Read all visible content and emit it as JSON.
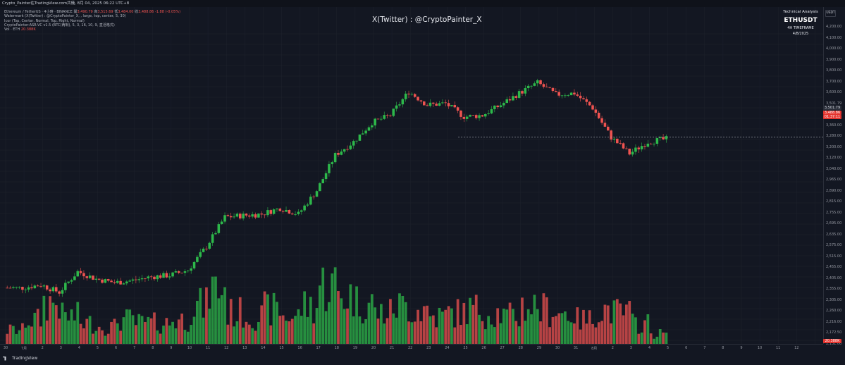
{
  "header": {
    "snapshot_title": "Crypto_Painter在TradingView.com共儀, 8月 04, 2025 06:22 UTC+8"
  },
  "legend": {
    "symbol_line": {
      "label": "Ethereum / TetherUS · 4小時 · BINANCE",
      "o_label": "開",
      "o": "3,490.79",
      "h_label": "高",
      "h": "3,515.69",
      "l_label": "低",
      "l": "3,484.00",
      "c_label": "收",
      "c": "3,488.86",
      "chg": "-1.88 (-0.05%)"
    },
    "watermark_line": "Watermark (X(Twitter) : @CryptoPainter_X, , large, top, center, 5, 30)",
    "settings_line": "Icor (Top, Center, Normal, Top, Right, Normal)",
    "indicator_line": "CryptoPainter-ASR-VC v1.5 (BTC(两制), 5, 3, 16, 10, 9, 直活格式)",
    "vol_line": {
      "label": "Vol · ETH",
      "value": "20.388K"
    }
  },
  "watermark": "X(Twitter) : @CryptoPainter_X",
  "info_box": {
    "heading": "Technical Analysis",
    "symbol": "ETHUSDT",
    "timeframe": "4H TIMEFRAME",
    "date": "4/8/2025"
  },
  "price_axis": {
    "currency_badge": "USDT",
    "ticks": [
      "4,200.00",
      "4,100.00",
      "4,000.00",
      "3,900.00",
      "3,800.00",
      "3,700.00",
      "3,600.00",
      "3,501.79",
      "3,440.00",
      "3,360.00",
      "3,280.00",
      "3,200.00",
      "3,120.00",
      "3,040.00",
      "2,965.00",
      "2,890.00",
      "2,815.00",
      "2,755.00",
      "2,695.00",
      "2,635.00",
      "2,575.00",
      "2,515.00",
      "2,455.00",
      "2,405.00",
      "2,355.00",
      "2,305.00",
      "2,260.00",
      "2,216.00",
      "2,172.50",
      "2,131.00"
    ],
    "badges": {
      "high_badge": "3,501.79",
      "last_price": "3,488.86",
      "countdown": "01:37:11",
      "volume": "20.388K"
    }
  },
  "time_axis": {
    "labels": [
      "30",
      "7月",
      "2",
      "3",
      "4",
      "5",
      "6",
      "7",
      "8",
      "9",
      "10",
      "11",
      "12",
      "13",
      "14",
      "15",
      "16",
      "17",
      "18",
      "19",
      "20",
      "21",
      "22",
      "23",
      "24",
      "25",
      "26",
      "27",
      "28",
      "29",
      "30",
      "31",
      "8月",
      "2",
      "3",
      "4",
      "5",
      "6",
      "7",
      "8",
      "9",
      "10",
      "11",
      "12"
    ]
  },
  "footer": {
    "logo_text": "TradingView"
  },
  "colors": {
    "up": "#26a69a",
    "up_candle": "#2db84a",
    "down": "#ef5350",
    "background": "#131722",
    "grid": "#1e222d",
    "last_price_badge": "#e5352f"
  },
  "chart_data": {
    "type": "candlestick",
    "timeframe": "4H",
    "symbol": "ETHUSDT",
    "x_start": "2025-06-30",
    "ylim": [
      2100,
      4250
    ],
    "reference_line": 3501.79,
    "close_path": [
      {
        "day": "30",
        "close": 2480
      },
      {
        "day": "7月",
        "close": 2500
      },
      {
        "day": "2",
        "close": 2450
      },
      {
        "day": "3",
        "close": 2590
      },
      {
        "day": "4",
        "close": 2540
      },
      {
        "day": "5",
        "close": 2515
      },
      {
        "day": "6",
        "close": 2530
      },
      {
        "day": "7",
        "close": 2555
      },
      {
        "day": "8",
        "close": 2565
      },
      {
        "day": "9",
        "close": 2600
      },
      {
        "day": "10",
        "close": 2760
      },
      {
        "day": "11",
        "close": 2960
      },
      {
        "day": "12",
        "close": 2970
      },
      {
        "day": "13",
        "close": 2980
      },
      {
        "day": "14",
        "close": 3020
      },
      {
        "day": "15",
        "close": 2980
      },
      {
        "day": "16",
        "close": 3140
      },
      {
        "day": "17",
        "close": 3380
      },
      {
        "day": "18",
        "close": 3470
      },
      {
        "day": "19",
        "close": 3600
      },
      {
        "day": "20",
        "close": 3650
      },
      {
        "day": "21",
        "close": 3810
      },
      {
        "day": "22",
        "close": 3720
      },
      {
        "day": "23",
        "close": 3730
      },
      {
        "day": "24",
        "close": 3640
      },
      {
        "day": "25",
        "close": 3650
      },
      {
        "day": "26",
        "close": 3720
      },
      {
        "day": "27",
        "close": 3800
      },
      {
        "day": "28",
        "close": 3870
      },
      {
        "day": "29",
        "close": 3790
      },
      {
        "day": "30",
        "close": 3800
      },
      {
        "day": "31",
        "close": 3700
      },
      {
        "day": "8月",
        "close": 3500
      },
      {
        "day": "2",
        "close": 3390
      },
      {
        "day": "3",
        "close": 3470
      },
      {
        "day": "4",
        "close": 3489
      }
    ],
    "volume_levels": [
      0.2,
      0.35,
      0.6,
      0.4,
      0.3,
      0.25,
      0.35,
      0.3,
      0.3,
      0.35,
      0.55,
      0.8,
      0.45,
      0.4,
      0.5,
      0.4,
      0.55,
      0.85,
      0.7,
      0.6,
      0.45,
      0.55,
      0.5,
      0.4,
      0.45,
      0.5,
      0.45,
      0.4,
      0.55,
      0.5,
      0.45,
      0.35,
      0.5,
      0.45,
      0.3,
      0.15
    ]
  }
}
